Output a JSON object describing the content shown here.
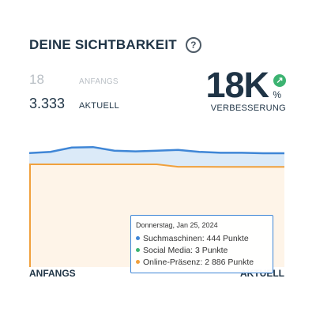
{
  "header": {
    "title": "DEINE SICHTBARKEIT",
    "help_icon": "?"
  },
  "metrics": {
    "start": {
      "value": "18",
      "label": "ANFANGS"
    },
    "current": {
      "value": "3.333",
      "label": "AKTUELL"
    }
  },
  "improvement": {
    "value": "18K",
    "percent": "%",
    "label": "VERBESSERUNG",
    "icon": "↗",
    "icon_color": "#3cb371"
  },
  "axis": {
    "start_label": "ANFANGS",
    "end_label": "AKTUELL"
  },
  "tooltip": {
    "date": "Donnerstag, Jan 25, 2024",
    "rows": [
      {
        "label": "Suchmaschinen: 444 Punkte",
        "color": "#3f86d6"
      },
      {
        "label": "Social Media: 3 Punkte",
        "color": "#3cb371"
      },
      {
        "label": "Online-Präsenz: 2 886 Punkte",
        "color": "#f0a03c"
      }
    ]
  },
  "colors": {
    "blue": "#3f86d6",
    "blue_fill": "#dbeaf8",
    "orange": "#f0a03c",
    "orange_fill": "#fef4e8"
  },
  "chart_data": {
    "type": "area",
    "series": [
      {
        "values": [
          445,
          450,
          468,
          470,
          455,
          452,
          455,
          458,
          450,
          446,
          446,
          444,
          444
        ]
      },
      {
        "values": [
          2995,
          2995,
          2995,
          2995,
          2995,
          2995,
          2995,
          2890,
          2890,
          2888,
          2887,
          2886,
          2886
        ]
      }
    ]
  }
}
